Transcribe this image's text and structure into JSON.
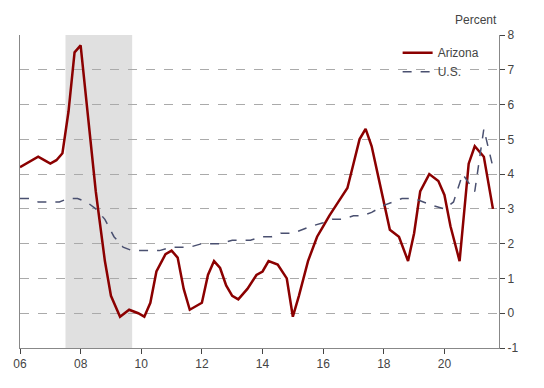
{
  "chart_data": {
    "type": "line",
    "y_label": "Percent",
    "background_color": "#ffffff",
    "grid": true,
    "grid_color": "#aaaaaa",
    "legend": "upper right",
    "shaded_region": {
      "x": [
        2007.5,
        2009.7
      ],
      "color": "#e0e0e0"
    },
    "xlim": [
      2006.0,
      2021.8
    ],
    "xticks": [
      {
        "value": 2006,
        "label": "06"
      },
      {
        "value": 2008,
        "label": "08"
      },
      {
        "value": 2010,
        "label": "10"
      },
      {
        "value": 2012,
        "label": "12"
      },
      {
        "value": 2014,
        "label": "14"
      },
      {
        "value": 2016,
        "label": "16"
      },
      {
        "value": 2018,
        "label": "18"
      },
      {
        "value": 2020,
        "label": "20"
      }
    ],
    "ylim": [
      -1,
      8
    ],
    "yticks": [
      -1,
      0,
      1,
      2,
      3,
      4,
      5,
      6,
      7,
      8
    ],
    "series": [
      {
        "name": "Arizona",
        "color": "#8b0000",
        "line_style": "solid",
        "x": [
          2006.0,
          2006.2,
          2006.4,
          2006.6,
          2006.8,
          2007.0,
          2007.2,
          2007.4,
          2007.6,
          2007.8,
          2008.0,
          2008.2,
          2008.5,
          2008.8,
          2009.0,
          2009.3,
          2009.6,
          2009.9,
          2010.1,
          2010.3,
          2010.5,
          2010.8,
          2011.0,
          2011.2,
          2011.4,
          2011.6,
          2011.8,
          2012.0,
          2012.2,
          2012.4,
          2012.6,
          2012.8,
          2013.0,
          2013.2,
          2013.5,
          2013.8,
          2014.0,
          2014.2,
          2014.5,
          2014.8,
          2015.0,
          2015.2,
          2015.5,
          2015.8,
          2016.0,
          2016.2,
          2016.5,
          2016.8,
          2017.0,
          2017.2,
          2017.4,
          2017.6,
          2017.8,
          2018.0,
          2018.2,
          2018.5,
          2018.8,
          2019.0,
          2019.2,
          2019.5,
          2019.8,
          2020.0,
          2020.2,
          2020.5,
          2020.8,
          2021.0,
          2021.3,
          2021.6
        ],
        "values": [
          4.2,
          4.3,
          4.4,
          4.5,
          4.4,
          4.3,
          4.4,
          4.6,
          5.8,
          7.5,
          7.7,
          6.0,
          3.5,
          1.5,
          0.5,
          -0.1,
          0.1,
          0.0,
          -0.1,
          0.3,
          1.2,
          1.7,
          1.8,
          1.6,
          0.7,
          0.1,
          0.2,
          0.3,
          1.1,
          1.5,
          1.3,
          0.8,
          0.5,
          0.4,
          0.7,
          1.1,
          1.2,
          1.5,
          1.4,
          1.0,
          -0.1,
          0.5,
          1.5,
          2.2,
          2.5,
          2.8,
          3.2,
          3.6,
          4.3,
          5.0,
          5.3,
          4.8,
          4.0,
          3.2,
          2.4,
          2.2,
          1.5,
          2.3,
          3.5,
          4.0,
          3.8,
          3.4,
          2.5,
          1.5,
          4.3,
          4.8,
          4.5,
          3.0
        ]
      },
      {
        "name": "U.S.",
        "color": "#4a5070",
        "line_style": "dashed",
        "x": [
          2006.0,
          2006.3,
          2006.6,
          2007.0,
          2007.3,
          2007.6,
          2007.9,
          2008.2,
          2008.5,
          2008.8,
          2009.1,
          2009.4,
          2009.7,
          2010.0,
          2010.3,
          2010.6,
          2011.0,
          2011.3,
          2011.6,
          2012.0,
          2012.3,
          2012.6,
          2013.0,
          2013.3,
          2013.6,
          2014.0,
          2014.3,
          2014.6,
          2015.0,
          2015.3,
          2015.6,
          2016.0,
          2016.3,
          2016.6,
          2017.0,
          2017.3,
          2017.6,
          2018.0,
          2018.3,
          2018.6,
          2019.0,
          2019.3,
          2019.6,
          2020.0,
          2020.3,
          2020.6,
          2021.0,
          2021.3,
          2021.6
        ],
        "values": [
          3.3,
          3.3,
          3.2,
          3.2,
          3.2,
          3.3,
          3.3,
          3.2,
          3.0,
          2.7,
          2.2,
          1.9,
          1.8,
          1.8,
          1.8,
          1.8,
          1.9,
          1.9,
          1.9,
          2.0,
          2.0,
          2.0,
          2.1,
          2.1,
          2.1,
          2.2,
          2.2,
          2.3,
          2.3,
          2.4,
          2.5,
          2.6,
          2.7,
          2.7,
          2.8,
          2.8,
          2.9,
          3.1,
          3.2,
          3.3,
          3.3,
          3.2,
          3.1,
          3.0,
          3.2,
          4.0,
          3.5,
          5.3,
          4.2
        ]
      }
    ]
  }
}
